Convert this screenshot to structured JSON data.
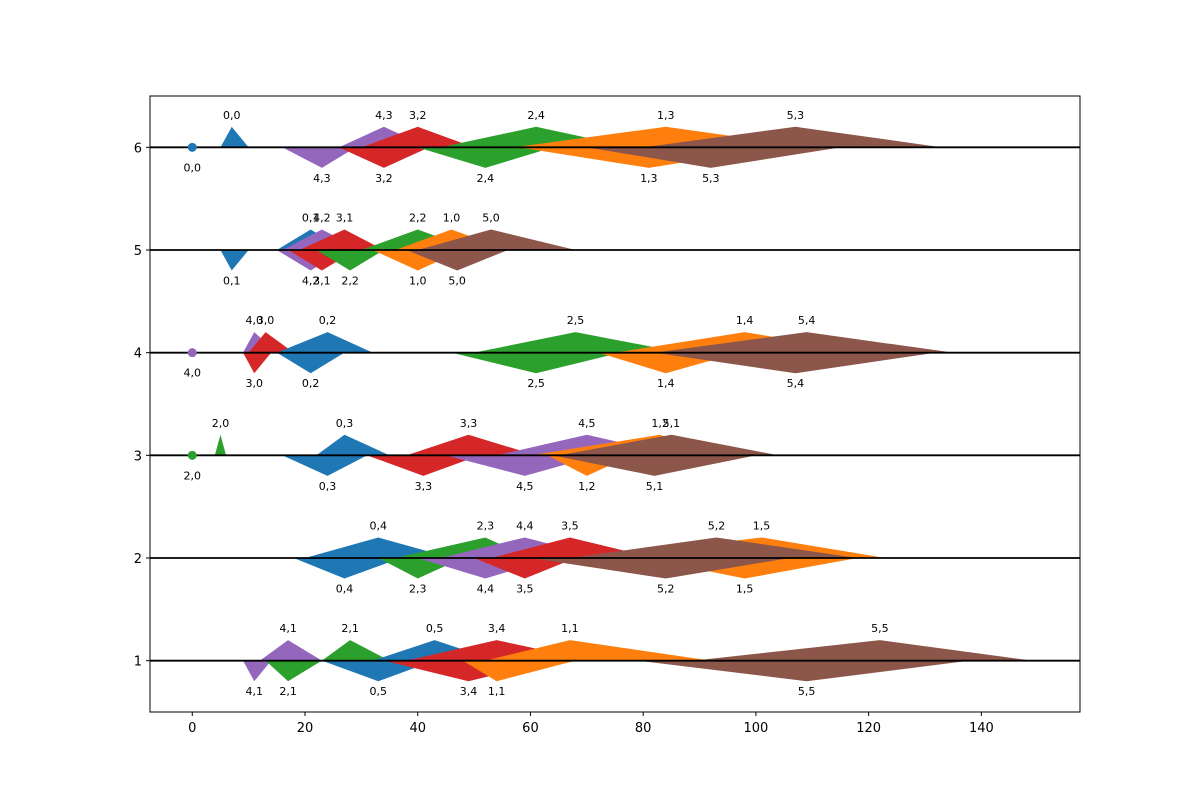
{
  "chart_data": {
    "type": "scatter",
    "title": "",
    "xlabel": "",
    "ylabel": "",
    "xlim": [
      -7.5,
      157.5
    ],
    "ylim": [
      0.5,
      6.5
    ],
    "xticks": [
      0,
      20,
      40,
      60,
      80,
      100,
      120,
      140
    ],
    "yticks": [
      1,
      2,
      3,
      4,
      5,
      6
    ],
    "grid": false,
    "legend": "none",
    "series_colors": [
      "#1f77b4",
      "#ff7f0e",
      "#2ca02c",
      "#d62728",
      "#9467bd",
      "#8c564b"
    ],
    "baselines": [
      1,
      2,
      3,
      4,
      5,
      6
    ],
    "points": [
      {
        "label": "0,0",
        "series": 0,
        "line": 6,
        "type": "dot",
        "x": 0
      },
      {
        "label": "4,0",
        "series": 4,
        "line": 4,
        "type": "dot",
        "x": 0
      },
      {
        "label": "2,0",
        "series": 2,
        "line": 3,
        "type": "dot",
        "x": 0
      },
      {
        "label": "0,0",
        "series": 0,
        "line": 6,
        "type": "shape",
        "side": "above",
        "x_start": 5,
        "x_peak": 7,
        "x_end": 10,
        "amp": 0.2
      },
      {
        "label": "4,3",
        "series": 4,
        "line": 6,
        "type": "shape",
        "side": "above",
        "x_start": 26,
        "x_peak": 34,
        "x_end": 42,
        "amp": 0.2
      },
      {
        "label": "4,3",
        "series": 4,
        "line": 6,
        "type": "shape",
        "side": "below",
        "x_start": 16,
        "x_peak": 23,
        "x_end": 29,
        "amp": 0.2
      },
      {
        "label": "3,2",
        "series": 3,
        "line": 6,
        "type": "shape",
        "side": "above",
        "x_start": 30,
        "x_peak": 40,
        "x_end": 50,
        "amp": 0.2
      },
      {
        "label": "3,2",
        "series": 3,
        "line": 6,
        "type": "shape",
        "side": "below",
        "x_start": 26,
        "x_peak": 34,
        "x_end": 42,
        "amp": 0.2
      },
      {
        "label": "2,4",
        "series": 2,
        "line": 6,
        "type": "shape",
        "side": "above",
        "x_start": 44,
        "x_peak": 61,
        "x_end": 78,
        "amp": 0.2
      },
      {
        "label": "2,4",
        "series": 2,
        "line": 6,
        "type": "shape",
        "side": "below",
        "x_start": 40,
        "x_peak": 52,
        "x_end": 64,
        "amp": 0.2
      },
      {
        "label": "1,3",
        "series": 1,
        "line": 6,
        "type": "shape",
        "side": "above",
        "x_start": 57,
        "x_peak": 84,
        "x_end": 110,
        "amp": 0.2
      },
      {
        "label": "1,3",
        "series": 1,
        "line": 6,
        "type": "shape",
        "side": "below",
        "x_start": 58,
        "x_peak": 81,
        "x_end": 104,
        "amp": 0.2
      },
      {
        "label": "5,3",
        "series": 5,
        "line": 6,
        "type": "shape",
        "side": "above",
        "x_start": 80,
        "x_peak": 107,
        "x_end": 133,
        "amp": 0.2
      },
      {
        "label": "5,3",
        "series": 5,
        "line": 6,
        "type": "shape",
        "side": "below",
        "x_start": 70,
        "x_peak": 92,
        "x_end": 115,
        "amp": 0.2
      },
      {
        "label": "0,1",
        "series": 0,
        "line": 5,
        "type": "shape",
        "side": "below",
        "x_start": 5,
        "x_peak": 7,
        "x_end": 10,
        "amp": 0.2
      },
      {
        "label": "0,1",
        "series": 0,
        "line": 5,
        "type": "shape",
        "side": "above",
        "x_start": 15,
        "x_peak": 21,
        "x_end": 27,
        "amp": 0.2
      },
      {
        "label": "4,2",
        "series": 4,
        "line": 5,
        "type": "shape",
        "side": "above",
        "x_start": 16,
        "x_peak": 23,
        "x_end": 30,
        "amp": 0.2
      },
      {
        "label": "4,2",
        "series": 4,
        "line": 5,
        "type": "shape",
        "side": "below",
        "x_start": 15,
        "x_peak": 21,
        "x_end": 27,
        "amp": 0.2
      },
      {
        "label": "3,1",
        "series": 3,
        "line": 5,
        "type": "shape",
        "side": "above",
        "x_start": 19,
        "x_peak": 27,
        "x_end": 34,
        "amp": 0.2
      },
      {
        "label": "3,1",
        "series": 3,
        "line": 5,
        "type": "shape",
        "side": "below",
        "x_start": 17,
        "x_peak": 23,
        "x_end": 29,
        "amp": 0.2
      },
      {
        "label": "2,2",
        "series": 2,
        "line": 5,
        "type": "shape",
        "side": "above",
        "x_start": 30,
        "x_peak": 40,
        "x_end": 50,
        "amp": 0.2
      },
      {
        "label": "2,2",
        "series": 2,
        "line": 5,
        "type": "shape",
        "side": "below",
        "x_start": 22,
        "x_peak": 28,
        "x_end": 34,
        "amp": 0.2
      },
      {
        "label": "1,0",
        "series": 1,
        "line": 5,
        "type": "shape",
        "side": "above",
        "x_start": 36,
        "x_peak": 46,
        "x_end": 56,
        "amp": 0.2
      },
      {
        "label": "1,0",
        "series": 1,
        "line": 5,
        "type": "shape",
        "side": "below",
        "x_start": 32,
        "x_peak": 40,
        "x_end": 48,
        "amp": 0.2
      },
      {
        "label": "5,0",
        "series": 5,
        "line": 5,
        "type": "shape",
        "side": "above",
        "x_start": 40,
        "x_peak": 53,
        "x_end": 68,
        "amp": 0.2
      },
      {
        "label": "5,0",
        "series": 5,
        "line": 5,
        "type": "shape",
        "side": "below",
        "x_start": 38,
        "x_peak": 47,
        "x_end": 56,
        "amp": 0.2
      },
      {
        "label": "4,0",
        "series": 4,
        "line": 4,
        "type": "shape",
        "side": "above",
        "x_start": 9,
        "x_peak": 11,
        "x_end": 15,
        "amp": 0.2
      },
      {
        "label": "3,0",
        "series": 3,
        "line": 4,
        "type": "shape",
        "side": "above",
        "x_start": 10,
        "x_peak": 13,
        "x_end": 18,
        "amp": 0.2
      },
      {
        "label": "3,0",
        "series": 3,
        "line": 4,
        "type": "shape",
        "side": "below",
        "x_start": 9,
        "x_peak": 11,
        "x_end": 14,
        "amp": 0.2
      },
      {
        "label": "0,2",
        "series": 0,
        "line": 4,
        "type": "shape",
        "side": "above",
        "x_start": 15,
        "x_peak": 24,
        "x_end": 32,
        "amp": 0.2
      },
      {
        "label": "0,2",
        "series": 0,
        "line": 4,
        "type": "shape",
        "side": "below",
        "x_start": 15,
        "x_peak": 21,
        "x_end": 27,
        "amp": 0.2
      },
      {
        "label": "2,5",
        "series": 2,
        "line": 4,
        "type": "shape",
        "side": "above",
        "x_start": 50,
        "x_peak": 68,
        "x_end": 87,
        "amp": 0.2
      },
      {
        "label": "2,5",
        "series": 2,
        "line": 4,
        "type": "shape",
        "side": "below",
        "x_start": 46,
        "x_peak": 61,
        "x_end": 76,
        "amp": 0.2
      },
      {
        "label": "1,4",
        "series": 1,
        "line": 4,
        "type": "shape",
        "side": "above",
        "x_start": 75,
        "x_peak": 98,
        "x_end": 120,
        "amp": 0.2
      },
      {
        "label": "1,4",
        "series": 1,
        "line": 4,
        "type": "shape",
        "side": "below",
        "x_start": 72,
        "x_peak": 84,
        "x_end": 97,
        "amp": 0.2
      },
      {
        "label": "5,4",
        "series": 5,
        "line": 4,
        "type": "shape",
        "side": "above",
        "x_start": 82,
        "x_peak": 109,
        "x_end": 135,
        "amp": 0.2
      },
      {
        "label": "5,4",
        "series": 5,
        "line": 4,
        "type": "shape",
        "side": "below",
        "x_start": 82,
        "x_peak": 107,
        "x_end": 132,
        "amp": 0.2
      },
      {
        "label": "2,0",
        "series": 2,
        "line": 3,
        "type": "shape",
        "side": "above",
        "x_start": 4,
        "x_peak": 5,
        "x_end": 6,
        "amp": 0.2
      },
      {
        "label": "0,3",
        "series": 0,
        "line": 3,
        "type": "shape",
        "side": "above",
        "x_start": 22,
        "x_peak": 27,
        "x_end": 35,
        "amp": 0.2
      },
      {
        "label": "0,3",
        "series": 0,
        "line": 3,
        "type": "shape",
        "side": "below",
        "x_start": 16,
        "x_peak": 24,
        "x_end": 31,
        "amp": 0.2
      },
      {
        "label": "3,3",
        "series": 3,
        "line": 3,
        "type": "shape",
        "side": "above",
        "x_start": 38,
        "x_peak": 49,
        "x_end": 61,
        "amp": 0.2
      },
      {
        "label": "3,3",
        "series": 3,
        "line": 3,
        "type": "shape",
        "side": "below",
        "x_start": 31,
        "x_peak": 41,
        "x_end": 51,
        "amp": 0.2
      },
      {
        "label": "4,5",
        "series": 4,
        "line": 3,
        "type": "shape",
        "side": "above",
        "x_start": 54,
        "x_peak": 70,
        "x_end": 86,
        "amp": 0.2
      },
      {
        "label": "4,5",
        "series": 4,
        "line": 3,
        "type": "shape",
        "side": "below",
        "x_start": 45,
        "x_peak": 59,
        "x_end": 72,
        "amp": 0.2
      },
      {
        "label": "1,2",
        "series": 1,
        "line": 3,
        "type": "shape",
        "side": "above",
        "x_start": 60,
        "x_peak": 83,
        "x_end": 93,
        "amp": 0.2
      },
      {
        "label": "1,2",
        "series": 1,
        "line": 3,
        "type": "shape",
        "side": "below",
        "x_start": 63,
        "x_peak": 70,
        "x_end": 78,
        "amp": 0.2
      },
      {
        "label": "5,1",
        "series": 5,
        "line": 3,
        "type": "shape",
        "side": "above",
        "x_start": 65,
        "x_peak": 85,
        "x_end": 104,
        "amp": 0.2
      },
      {
        "label": "5,1",
        "series": 5,
        "line": 3,
        "type": "shape",
        "side": "below",
        "x_start": 64,
        "x_peak": 82,
        "x_end": 100,
        "amp": 0.2
      },
      {
        "label": "0,4",
        "series": 0,
        "line": 2,
        "type": "shape",
        "side": "above",
        "x_start": 20,
        "x_peak": 33,
        "x_end": 46,
        "amp": 0.2
      },
      {
        "label": "0,4",
        "series": 0,
        "line": 2,
        "type": "shape",
        "side": "below",
        "x_start": 18,
        "x_peak": 27,
        "x_end": 37,
        "amp": 0.2
      },
      {
        "label": "2,3",
        "series": 2,
        "line": 2,
        "type": "shape",
        "side": "above",
        "x_start": 36,
        "x_peak": 52,
        "x_end": 60,
        "amp": 0.2
      },
      {
        "label": "2,3",
        "series": 2,
        "line": 2,
        "type": "shape",
        "side": "below",
        "x_start": 33,
        "x_peak": 40,
        "x_end": 48,
        "amp": 0.2
      },
      {
        "label": "4,4",
        "series": 4,
        "line": 2,
        "type": "shape",
        "side": "above",
        "x_start": 44,
        "x_peak": 59,
        "x_end": 73,
        "amp": 0.2
      },
      {
        "label": "4,4",
        "series": 4,
        "line": 2,
        "type": "shape",
        "side": "below",
        "x_start": 40,
        "x_peak": 52,
        "x_end": 64,
        "amp": 0.2
      },
      {
        "label": "3,5",
        "series": 3,
        "line": 2,
        "type": "shape",
        "side": "above",
        "x_start": 53,
        "x_peak": 67,
        "x_end": 82,
        "amp": 0.2
      },
      {
        "label": "3,5",
        "series": 3,
        "line": 2,
        "type": "shape",
        "side": "below",
        "x_start": 50,
        "x_peak": 59,
        "x_end": 68,
        "amp": 0.2
      },
      {
        "label": "1,5",
        "series": 1,
        "line": 2,
        "type": "shape",
        "side": "above",
        "x_start": 70,
        "x_peak": 101,
        "x_end": 123,
        "amp": 0.2
      },
      {
        "label": "1,5",
        "series": 1,
        "line": 2,
        "type": "shape",
        "side": "below",
        "x_start": 80,
        "x_peak": 98,
        "x_end": 118,
        "amp": 0.2
      },
      {
        "label": "5,2",
        "series": 5,
        "line": 2,
        "type": "shape",
        "side": "above",
        "x_start": 67,
        "x_peak": 93,
        "x_end": 118,
        "amp": 0.2
      },
      {
        "label": "5,2",
        "series": 5,
        "line": 2,
        "type": "shape",
        "side": "below",
        "x_start": 60,
        "x_peak": 84,
        "x_end": 106,
        "amp": 0.2
      },
      {
        "label": "4,1",
        "series": 4,
        "line": 1,
        "type": "shape",
        "side": "above",
        "x_start": 12,
        "x_peak": 17,
        "x_end": 23,
        "amp": 0.2
      },
      {
        "label": "4,1",
        "series": 4,
        "line": 1,
        "type": "shape",
        "side": "below",
        "x_start": 9,
        "x_peak": 11,
        "x_end": 14,
        "amp": 0.2
      },
      {
        "label": "2,1",
        "series": 2,
        "line": 1,
        "type": "shape",
        "side": "above",
        "x_start": 23,
        "x_peak": 28,
        "x_end": 35,
        "amp": 0.2
      },
      {
        "label": "2,1",
        "series": 2,
        "line": 1,
        "type": "shape",
        "side": "below",
        "x_start": 13,
        "x_peak": 17,
        "x_end": 23,
        "amp": 0.2
      },
      {
        "label": "0,5",
        "series": 0,
        "line": 1,
        "type": "shape",
        "side": "above",
        "x_start": 32,
        "x_peak": 43,
        "x_end": 54,
        "amp": 0.2
      },
      {
        "label": "0,5",
        "series": 0,
        "line": 1,
        "type": "shape",
        "side": "below",
        "x_start": 23,
        "x_peak": 33,
        "x_end": 43,
        "amp": 0.2
      },
      {
        "label": "3,4",
        "series": 3,
        "line": 1,
        "type": "shape",
        "side": "above",
        "x_start": 38,
        "x_peak": 54,
        "x_end": 71,
        "amp": 0.2
      },
      {
        "label": "3,4",
        "series": 3,
        "line": 1,
        "type": "shape",
        "side": "below",
        "x_start": 34,
        "x_peak": 49,
        "x_end": 64,
        "amp": 0.2
      },
      {
        "label": "1,1",
        "series": 1,
        "line": 1,
        "type": "shape",
        "side": "above",
        "x_start": 52,
        "x_peak": 67,
        "x_end": 92,
        "amp": 0.2
      },
      {
        "label": "1,1",
        "series": 1,
        "line": 1,
        "type": "shape",
        "side": "below",
        "x_start": 48,
        "x_peak": 54,
        "x_end": 68,
        "amp": 0.2
      },
      {
        "label": "5,5",
        "series": 5,
        "line": 1,
        "type": "shape",
        "side": "above",
        "x_start": 89,
        "x_peak": 122,
        "x_end": 149,
        "amp": 0.2
      },
      {
        "label": "5,5",
        "series": 5,
        "line": 1,
        "type": "shape",
        "side": "below",
        "x_start": 79,
        "x_peak": 109,
        "x_end": 138,
        "amp": 0.2
      }
    ]
  }
}
